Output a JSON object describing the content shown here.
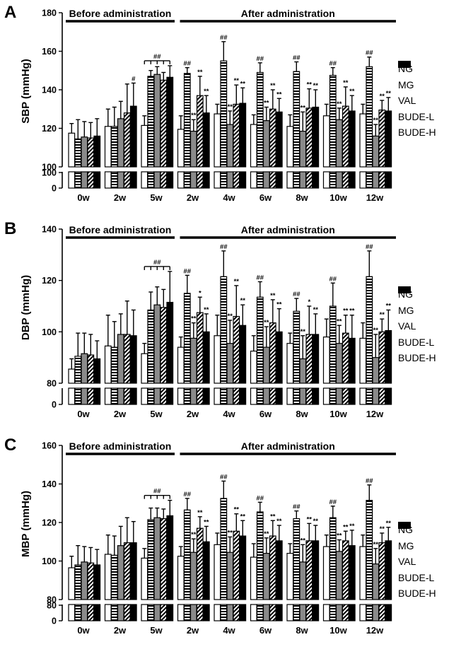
{
  "figure": {
    "colors": {
      "NG": "#ffffff",
      "MG": "#ffffff",
      "VAL": "#8a8a8a",
      "BUDE-L": "#ffffff",
      "BUDE-H": "#000000",
      "axis": "#000000"
    },
    "legend": [
      "NG",
      "MG",
      "VAL",
      "BUDE-L",
      "BUDE-H"
    ]
  },
  "chart_data": [
    {
      "type": "bar",
      "panel_label": "A",
      "ylabel": "SBP (mmHg)",
      "ylim": [
        100,
        180
      ],
      "yticks": [
        100,
        120,
        140,
        160,
        180
      ],
      "broken_axis_ticks": [
        "100",
        "0"
      ],
      "categories": [
        "0w",
        "2w",
        "5w",
        "2w",
        "4w",
        "6w",
        "8w",
        "10w",
        "12w"
      ],
      "periods": [
        {
          "label": "Before administration",
          "from": 0,
          "to": 2
        },
        {
          "label": "After administration",
          "from": 3,
          "to": 8
        }
      ],
      "bracket": {
        "group": 2,
        "label": "##"
      },
      "series": [
        {
          "name": "NG",
          "values": [
            117.5,
            121,
            121.5,
            119.5,
            127.5,
            122,
            121,
            126.5,
            127.5
          ],
          "errors": [
            5,
            9,
            5,
            7,
            5,
            5,
            6,
            6,
            5
          ]
        },
        {
          "name": "MG",
          "values": [
            114.5,
            121,
            147,
            148.5,
            155,
            149,
            149.5,
            147.5,
            152
          ],
          "errors": [
            10,
            10,
            3,
            3,
            10,
            5,
            5,
            4,
            5
          ]
        },
        {
          "name": "VAL",
          "values": [
            115.5,
            125,
            148,
            118.5,
            122,
            124,
            118.5,
            124.5,
            116
          ],
          "errors": [
            8,
            9,
            4,
            6,
            7,
            7,
            10,
            6,
            6
          ]
        },
        {
          "name": "BUDE-L",
          "values": [
            115,
            128,
            145,
            137,
            132.5,
            130,
            130.5,
            131.5,
            129.5
          ],
          "errors": [
            8,
            15,
            4,
            10,
            10,
            10,
            10,
            10,
            5
          ]
        },
        {
          "name": "BUDE-H",
          "values": [
            116,
            131.5,
            146.5,
            128,
            133,
            128.5,
            131,
            129,
            129
          ],
          "errors": [
            9,
            12,
            6,
            9,
            8,
            7,
            9,
            8,
            7
          ]
        }
      ],
      "annotations": [
        {
          "group": 1,
          "series": 4,
          "text": "#"
        },
        {
          "group": 3,
          "series": 1,
          "text": "##"
        },
        {
          "group": 3,
          "series": 2,
          "text": "**"
        },
        {
          "group": 3,
          "series": 3,
          "text": "**"
        },
        {
          "group": 3,
          "series": 4,
          "text": "**"
        },
        {
          "group": 4,
          "series": 1,
          "text": "##"
        },
        {
          "group": 4,
          "series": 2,
          "text": "**"
        },
        {
          "group": 4,
          "series": 3,
          "text": "**"
        },
        {
          "group": 4,
          "series": 4,
          "text": "**"
        },
        {
          "group": 5,
          "series": 1,
          "text": "##"
        },
        {
          "group": 5,
          "series": 2,
          "text": "**"
        },
        {
          "group": 5,
          "series": 3,
          "text": "**"
        },
        {
          "group": 5,
          "series": 4,
          "text": "**"
        },
        {
          "group": 6,
          "series": 1,
          "text": "##"
        },
        {
          "group": 6,
          "series": 2,
          "text": "**"
        },
        {
          "group": 6,
          "series": 3,
          "text": "**"
        },
        {
          "group": 6,
          "series": 4,
          "text": "**"
        },
        {
          "group": 7,
          "series": 1,
          "text": "##"
        },
        {
          "group": 7,
          "series": 2,
          "text": "**"
        },
        {
          "group": 7,
          "series": 3,
          "text": "**"
        },
        {
          "group": 7,
          "series": 4,
          "text": "**"
        },
        {
          "group": 8,
          "series": 1,
          "text": "##"
        },
        {
          "group": 8,
          "series": 2,
          "text": "**"
        },
        {
          "group": 8,
          "series": 3,
          "text": "**"
        },
        {
          "group": 8,
          "series": 4,
          "text": "**"
        }
      ]
    },
    {
      "type": "bar",
      "panel_label": "B",
      "ylabel": "DBP (mmHg)",
      "ylim": [
        80,
        140
      ],
      "yticks": [
        80,
        100,
        120,
        140
      ],
      "broken_axis_ticks": [
        "0"
      ],
      "categories": [
        "0w",
        "2w",
        "5w",
        "2w",
        "4w",
        "6w",
        "8w",
        "10w",
        "12w"
      ],
      "periods": [
        {
          "label": "Before administration",
          "from": 0,
          "to": 2
        },
        {
          "label": "After administration",
          "from": 3,
          "to": 8
        }
      ],
      "bracket": {
        "group": 2,
        "label": "##"
      },
      "series": [
        {
          "name": "NG",
          "values": [
            85.5,
            94.5,
            91.5,
            94,
            98.5,
            92.5,
            95.5,
            98,
            97.5
          ],
          "errors": [
            4,
            12,
            4,
            4,
            8,
            6,
            4,
            7,
            6
          ]
        },
        {
          "name": "MG",
          "values": [
            90.5,
            94,
            108.5,
            115,
            121.5,
            113.5,
            108,
            110,
            121.5
          ],
          "errors": [
            9,
            10,
            7,
            7,
            10,
            6,
            5,
            9,
            10
          ]
        },
        {
          "name": "VAL",
          "values": [
            91.5,
            99,
            110.5,
            97.5,
            95.5,
            94,
            89.5,
            95.5,
            90
          ],
          "errors": [
            8,
            8,
            7,
            6,
            9,
            8,
            9,
            7,
            9
          ]
        },
        {
          "name": "BUDE-L",
          "values": [
            91,
            99,
            109.5,
            107.5,
            106,
            103.5,
            99,
            99.5,
            100
          ],
          "errors": [
            8,
            13,
            7,
            6,
            12,
            9,
            11,
            7,
            5
          ]
        },
        {
          "name": "BUDE-H",
          "values": [
            89.5,
            98.5,
            111.5,
            100,
            102.5,
            100,
            99,
            97.5,
            100.5
          ],
          "errors": [
            7,
            10,
            12,
            7,
            8,
            9,
            8,
            9,
            8
          ]
        }
      ],
      "annotations": [
        {
          "group": 3,
          "series": 1,
          "text": "##"
        },
        {
          "group": 3,
          "series": 2,
          "text": "**"
        },
        {
          "group": 3,
          "series": 3,
          "text": "*"
        },
        {
          "group": 3,
          "series": 4,
          "text": "**"
        },
        {
          "group": 4,
          "series": 1,
          "text": "##"
        },
        {
          "group": 4,
          "series": 2,
          "text": "**"
        },
        {
          "group": 4,
          "series": 3,
          "text": "**"
        },
        {
          "group": 4,
          "series": 4,
          "text": "**"
        },
        {
          "group": 5,
          "series": 1,
          "text": "##"
        },
        {
          "group": 5,
          "series": 2,
          "text": "**"
        },
        {
          "group": 5,
          "series": 3,
          "text": "**"
        },
        {
          "group": 5,
          "series": 4,
          "text": "**"
        },
        {
          "group": 6,
          "series": 1,
          "text": "##"
        },
        {
          "group": 6,
          "series": 2,
          "text": "**"
        },
        {
          "group": 6,
          "series": 3,
          "text": "*"
        },
        {
          "group": 6,
          "series": 4,
          "text": "**"
        },
        {
          "group": 7,
          "series": 1,
          "text": "##"
        },
        {
          "group": 7,
          "series": 2,
          "text": "**"
        },
        {
          "group": 7,
          "series": 3,
          "text": "**"
        },
        {
          "group": 7,
          "series": 4,
          "text": "**"
        },
        {
          "group": 8,
          "series": 1,
          "text": "##"
        },
        {
          "group": 8,
          "series": 2,
          "text": "**"
        },
        {
          "group": 8,
          "series": 3,
          "text": "**"
        },
        {
          "group": 8,
          "series": 4,
          "text": "**"
        }
      ]
    },
    {
      "type": "bar",
      "panel_label": "C",
      "ylabel": "MBP (mmHg)",
      "ylim": [
        80,
        160
      ],
      "yticks": [
        80,
        100,
        120,
        140,
        160
      ],
      "broken_axis_ticks": [
        "80",
        "0"
      ],
      "categories": [
        "0w",
        "2w",
        "5w",
        "2w",
        "4w",
        "6w",
        "8w",
        "10w",
        "12w"
      ],
      "periods": [
        {
          "label": "Before administration",
          "from": 0,
          "to": 2
        },
        {
          "label": "After administration",
          "from": 3,
          "to": 8
        }
      ],
      "bracket": {
        "group": 2,
        "label": "##"
      },
      "series": [
        {
          "name": "NG",
          "values": [
            96.5,
            103.5,
            101.5,
            102.5,
            108.5,
            102,
            104,
            107.5,
            107.5
          ],
          "errors": [
            6,
            10,
            5,
            5,
            6,
            7,
            5,
            6,
            6
          ]
        },
        {
          "name": "MG",
          "values": [
            98,
            103,
            121.5,
            126.5,
            132.5,
            125.5,
            122,
            122.5,
            131.5
          ],
          "errors": [
            10,
            10,
            6,
            6,
            9,
            5,
            4,
            6,
            8
          ]
        },
        {
          "name": "VAL",
          "values": [
            99.5,
            108,
            122.5,
            104.5,
            104.5,
            104,
            99.5,
            105,
            98.5
          ],
          "errors": [
            8,
            10,
            5,
            7,
            8,
            8,
            9,
            6,
            8
          ]
        },
        {
          "name": "BUDE-L",
          "values": [
            99,
            109.5,
            122,
            117,
            115.5,
            113,
            110.5,
            110.5,
            109.5
          ],
          "errors": [
            8,
            13,
            5,
            6,
            9,
            8,
            9,
            5,
            5
          ]
        },
        {
          "name": "BUDE-H",
          "values": [
            98,
            109.5,
            123.5,
            110,
            113,
            110.5,
            110.5,
            108,
            110.5
          ],
          "errors": [
            8,
            11,
            8,
            8,
            8,
            8,
            8,
            8,
            7
          ]
        }
      ],
      "annotations": [
        {
          "group": 3,
          "series": 1,
          "text": "##"
        },
        {
          "group": 3,
          "series": 2,
          "text": "**"
        },
        {
          "group": 3,
          "series": 3,
          "text": "**"
        },
        {
          "group": 3,
          "series": 4,
          "text": "**"
        },
        {
          "group": 4,
          "series": 1,
          "text": "##"
        },
        {
          "group": 4,
          "series": 2,
          "text": "**"
        },
        {
          "group": 4,
          "series": 3,
          "text": "**"
        },
        {
          "group": 4,
          "series": 4,
          "text": "**"
        },
        {
          "group": 5,
          "series": 1,
          "text": "##"
        },
        {
          "group": 5,
          "series": 2,
          "text": "**"
        },
        {
          "group": 5,
          "series": 3,
          "text": "**"
        },
        {
          "group": 5,
          "series": 4,
          "text": "**"
        },
        {
          "group": 6,
          "series": 1,
          "text": "##"
        },
        {
          "group": 6,
          "series": 2,
          "text": "**"
        },
        {
          "group": 6,
          "series": 3,
          "text": "**"
        },
        {
          "group": 6,
          "series": 4,
          "text": "**"
        },
        {
          "group": 7,
          "series": 1,
          "text": "##"
        },
        {
          "group": 7,
          "series": 2,
          "text": "**"
        },
        {
          "group": 7,
          "series": 3,
          "text": "**"
        },
        {
          "group": 7,
          "series": 4,
          "text": "**"
        },
        {
          "group": 8,
          "series": 1,
          "text": "##"
        },
        {
          "group": 8,
          "series": 2,
          "text": "**"
        },
        {
          "group": 8,
          "series": 3,
          "text": "**"
        },
        {
          "group": 8,
          "series": 4,
          "text": "**"
        }
      ]
    }
  ]
}
